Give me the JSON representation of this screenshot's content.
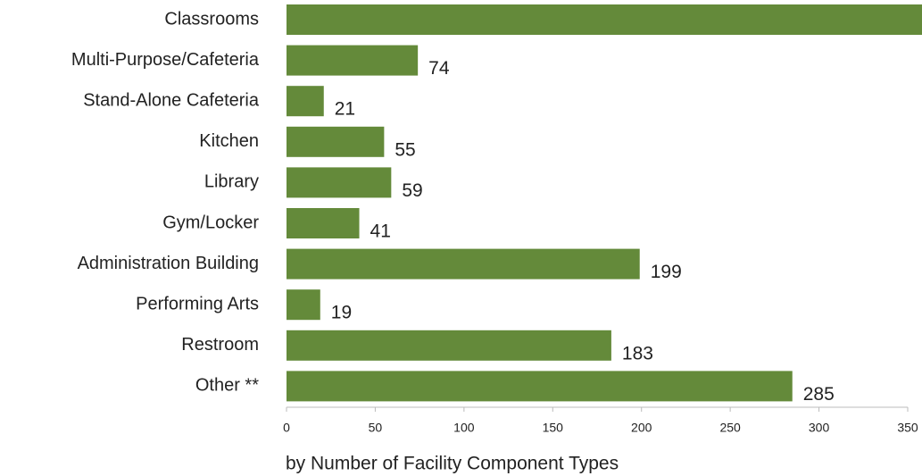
{
  "chart_data": {
    "type": "hbar",
    "categories": [
      "Classrooms",
      "Multi-Purpose/Cafeteria",
      "Stand-Alone Cafeteria",
      "Kitchen",
      "Library",
      "Gym/Locker",
      "Administration Building",
      "Performing Arts",
      "Restroom",
      "Other **"
    ],
    "values": [
      360,
      74,
      21,
      55,
      59,
      41,
      199,
      19,
      183,
      285
    ],
    "show_value_labels": [
      false,
      true,
      true,
      true,
      true,
      true,
      true,
      true,
      true,
      true
    ],
    "color": "#648a3a",
    "xlim": [
      0,
      350
    ],
    "xticks": [
      0,
      50,
      100,
      150,
      200,
      250,
      300,
      350
    ],
    "xlabel": "by Number of Facility Component Types"
  }
}
